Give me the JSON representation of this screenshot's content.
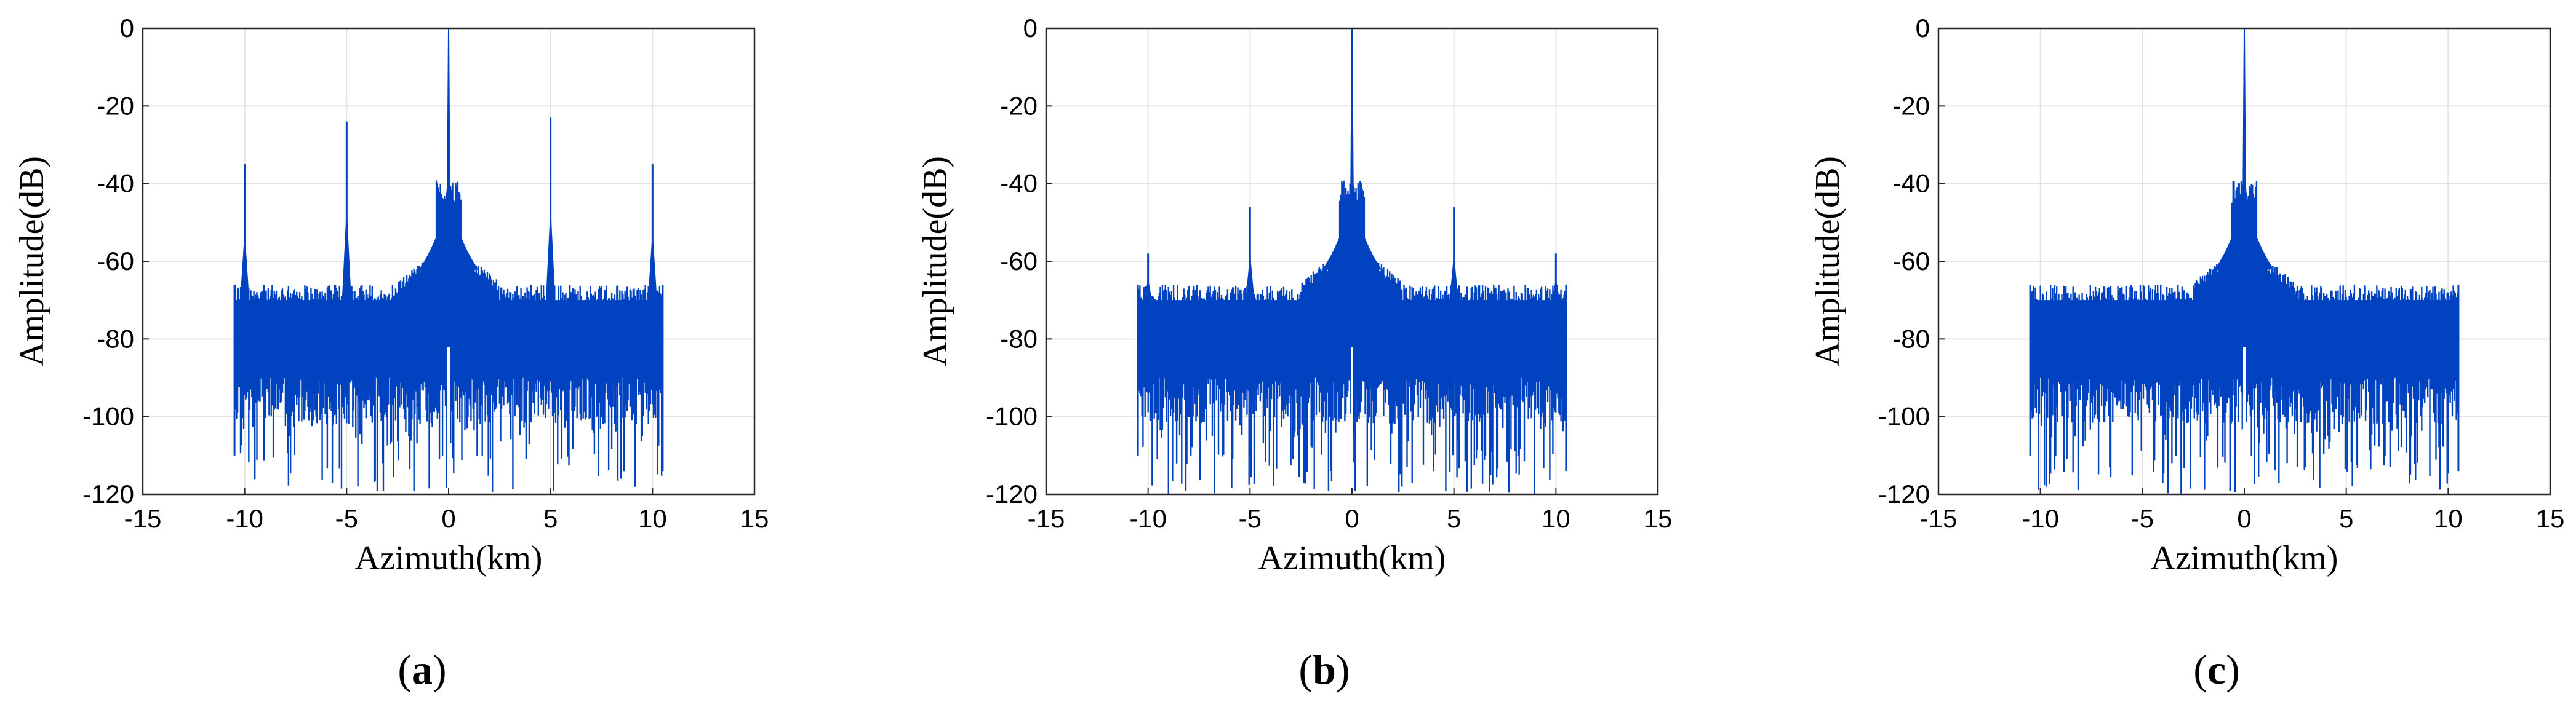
{
  "chart_data": [
    {
      "type": "line",
      "panel_label": "a",
      "xlabel": "Azimuth(km)",
      "ylabel": "Amplitude(dB)",
      "xlim": [
        -15,
        15
      ],
      "ylim": [
        -120,
        0
      ],
      "xticks": [
        "-15",
        "-10",
        "-5",
        "0",
        "5",
        "10",
        "15"
      ],
      "yticks": [
        "0",
        "-20",
        "-40",
        "-60",
        "-80",
        "-100",
        "-120"
      ],
      "grid": true,
      "color": "#0042bf",
      "data_extent_x": [
        -10.5,
        10.5
      ],
      "noise_floor_db": [
        -90,
        -68
      ],
      "noise_floor_near_center_db": -58,
      "peaks": [
        {
          "x": -10,
          "y": -35
        },
        {
          "x": -5,
          "y": -24
        },
        {
          "x": 0,
          "y": 0
        },
        {
          "x": 5,
          "y": -23
        },
        {
          "x": 10,
          "y": -35
        }
      ]
    },
    {
      "type": "line",
      "panel_label": "b",
      "xlabel": "Azimuth(km)",
      "ylabel": "Amplitude(dB)",
      "xlim": [
        -15,
        15
      ],
      "ylim": [
        -120,
        0
      ],
      "xticks": [
        "-15",
        "-10",
        "-5",
        "0",
        "5",
        "10",
        "15"
      ],
      "yticks": [
        "0",
        "-20",
        "-40",
        "-60",
        "-80",
        "-100",
        "-120"
      ],
      "grid": true,
      "color": "#0042bf",
      "data_extent_x": [
        -10.5,
        10.5
      ],
      "noise_floor_db": [
        -90,
        -68
      ],
      "noise_floor_near_center_db": -58,
      "peaks": [
        {
          "x": -10,
          "y": -58
        },
        {
          "x": -5,
          "y": -46
        },
        {
          "x": 0,
          "y": 0
        },
        {
          "x": 5,
          "y": -46
        },
        {
          "x": 10,
          "y": -58
        }
      ]
    },
    {
      "type": "line",
      "panel_label": "c",
      "xlabel": "Azimuth(km)",
      "ylabel": "Amplitude(dB)",
      "xlim": [
        -15,
        15
      ],
      "ylim": [
        -120,
        0
      ],
      "xticks": [
        "-15",
        "-10",
        "-5",
        "0",
        "5",
        "10",
        "15"
      ],
      "yticks": [
        "0",
        "-20",
        "-40",
        "-60",
        "-80",
        "-100",
        "-120"
      ],
      "grid": true,
      "color": "#0042bf",
      "data_extent_x": [
        -10.5,
        10.5
      ],
      "noise_floor_db": [
        -90,
        -68
      ],
      "noise_floor_near_center_db": -58,
      "peaks": [
        {
          "x": 0,
          "y": 0
        }
      ]
    }
  ]
}
